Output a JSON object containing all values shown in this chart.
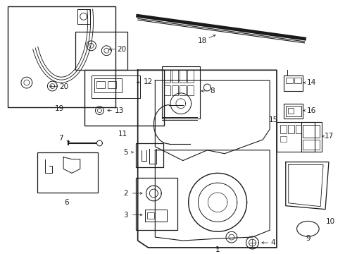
{
  "bg_color": "#ffffff",
  "line_color": "#1a1a1a",
  "lw": 0.8,
  "fig_w": 4.9,
  "fig_h": 3.6,
  "dpi": 100
}
